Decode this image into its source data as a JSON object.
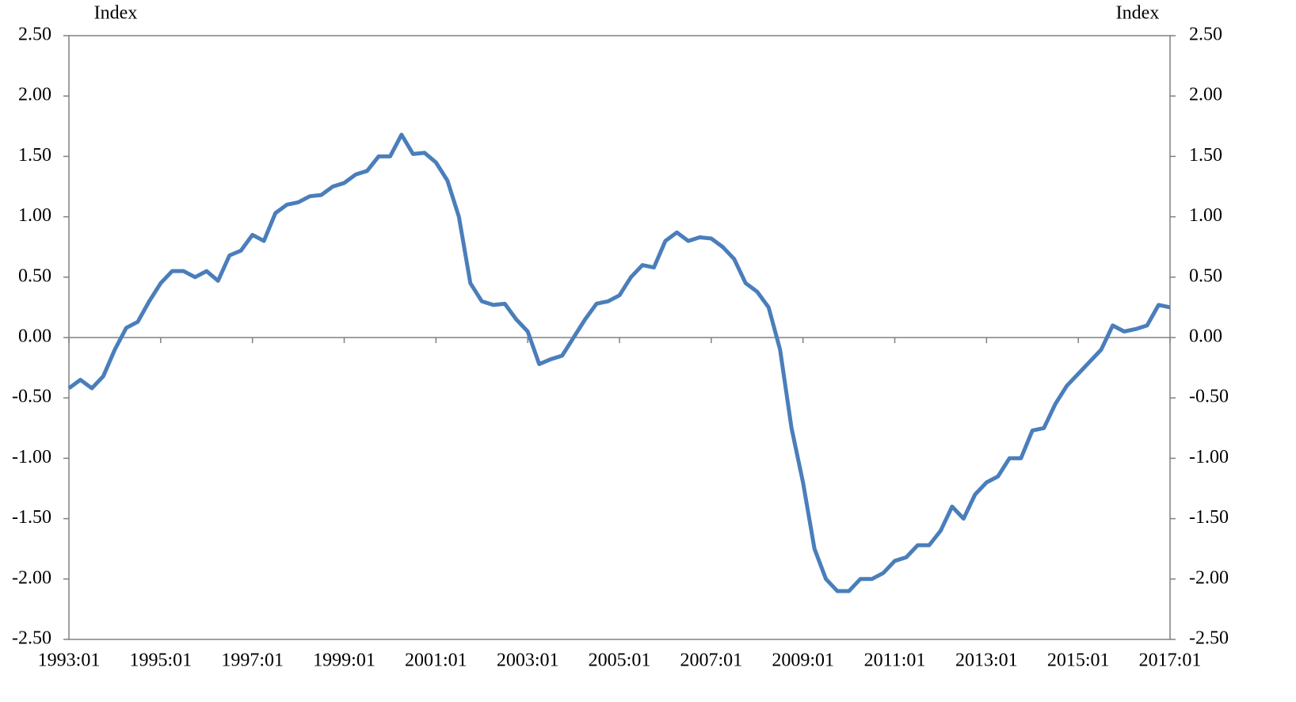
{
  "chart_data": {
    "type": "line",
    "y_label": "Index",
    "y2_label": "Index",
    "x": [
      "1993:01",
      "1993:04",
      "1993:07",
      "1993:10",
      "1994:01",
      "1994:04",
      "1994:07",
      "1994:10",
      "1995:01",
      "1995:04",
      "1995:07",
      "1995:10",
      "1996:01",
      "1996:04",
      "1996:07",
      "1996:10",
      "1997:01",
      "1997:04",
      "1997:07",
      "1997:10",
      "1998:01",
      "1998:04",
      "1998:07",
      "1998:10",
      "1999:01",
      "1999:04",
      "1999:07",
      "1999:10",
      "2000:01",
      "2000:04",
      "2000:07",
      "2000:10",
      "2001:01",
      "2001:04",
      "2001:07",
      "2001:10",
      "2002:01",
      "2002:04",
      "2002:07",
      "2002:10",
      "2003:01",
      "2003:04",
      "2003:07",
      "2003:10",
      "2004:01",
      "2004:04",
      "2004:07",
      "2004:10",
      "2005:01",
      "2005:04",
      "2005:07",
      "2005:10",
      "2006:01",
      "2006:04",
      "2006:07",
      "2006:10",
      "2007:01",
      "2007:04",
      "2007:07",
      "2007:10",
      "2008:01",
      "2008:04",
      "2008:07",
      "2008:10",
      "2009:01",
      "2009:04",
      "2009:07",
      "2009:10",
      "2010:01",
      "2010:04",
      "2010:07",
      "2010:10",
      "2011:01",
      "2011:04",
      "2011:07",
      "2011:10",
      "2012:01",
      "2012:04",
      "2012:07",
      "2012:10",
      "2013:01",
      "2013:04",
      "2013:07",
      "2013:10",
      "2014:01",
      "2014:04",
      "2014:07",
      "2014:10",
      "2015:01",
      "2015:04",
      "2015:07",
      "2015:10",
      "2016:01",
      "2016:04",
      "2016:07",
      "2016:10",
      "2017:01"
    ],
    "series": [
      {
        "color": "#4a7ebb",
        "values": [
          -0.42,
          -0.35,
          -0.42,
          -0.32,
          -0.1,
          0.08,
          0.13,
          0.3,
          0.45,
          0.55,
          0.55,
          0.5,
          0.55,
          0.47,
          0.68,
          0.72,
          0.85,
          0.8,
          1.03,
          1.1,
          1.12,
          1.17,
          1.18,
          1.25,
          1.28,
          1.35,
          1.38,
          1.5,
          1.5,
          1.68,
          1.52,
          1.53,
          1.45,
          1.3,
          1.0,
          0.45,
          0.3,
          0.27,
          0.28,
          0.15,
          0.05,
          -0.22,
          -0.18,
          -0.15,
          0.0,
          0.15,
          0.28,
          0.3,
          0.35,
          0.5,
          0.6,
          0.58,
          0.8,
          0.87,
          0.8,
          0.83,
          0.82,
          0.75,
          0.65,
          0.45,
          0.38,
          0.25,
          -0.1,
          -0.75,
          -1.2,
          -1.75,
          -2.0,
          -2.1,
          -2.1,
          -2.0,
          -2.0,
          -1.95,
          -1.85,
          -1.82,
          -1.72,
          -1.72,
          -1.6,
          -1.4,
          -1.5,
          -1.3,
          -1.2,
          -1.15,
          -1.0,
          -1.0,
          -0.77,
          -0.75,
          -0.55,
          -0.4,
          -0.3,
          -0.2,
          -0.1,
          0.1,
          0.05,
          0.07,
          0.1,
          0.27,
          0.25
        ]
      }
    ],
    "xticks": [
      "1993:01",
      "1995:01",
      "1997:01",
      "1999:01",
      "2001:01",
      "2003:01",
      "2005:01",
      "2007:01",
      "2009:01",
      "2011:01",
      "2013:01",
      "2015:01",
      "2017:01"
    ],
    "ylim": [
      -2.5,
      2.5
    ],
    "yticks": [
      {
        "value": -2.5,
        "label": "-2.50"
      },
      {
        "value": -2,
        "label": "-2.00"
      },
      {
        "value": -1.5,
        "label": "-1.50"
      },
      {
        "value": -1,
        "label": "-1.00"
      },
      {
        "value": -0.5,
        "label": "-0.50"
      },
      {
        "value": 0,
        "label": "0.00"
      },
      {
        "value": 0.5,
        "label": "0.50"
      },
      {
        "value": 1,
        "label": "1.00"
      },
      {
        "value": 1.5,
        "label": "1.50"
      },
      {
        "value": 2,
        "label": "2.00"
      },
      {
        "value": 2.5,
        "label": "2.50"
      }
    ],
    "y2lim": [
      -2.5,
      2.5
    ],
    "y2ticks": [
      {
        "value": -2.5,
        "label": "-2.50"
      },
      {
        "value": -2,
        "label": "-2.00"
      },
      {
        "value": -1.5,
        "label": "-1.50"
      },
      {
        "value": -1,
        "label": "-1.00"
      },
      {
        "value": -0.5,
        "label": "-0.50"
      },
      {
        "value": 0,
        "label": "0.00"
      },
      {
        "value": 0.5,
        "label": "0.50"
      },
      {
        "value": 1,
        "label": "1.00"
      },
      {
        "value": 1.5,
        "label": "1.50"
      },
      {
        "value": 2,
        "label": "2.00"
      },
      {
        "value": 2.5,
        "label": "2.50"
      }
    ]
  }
}
